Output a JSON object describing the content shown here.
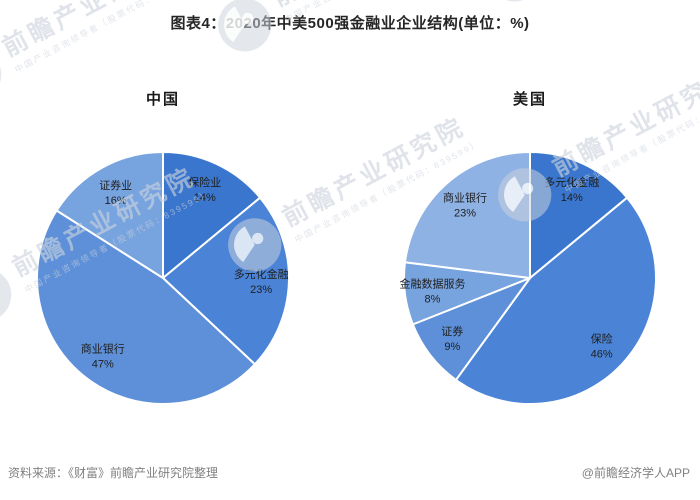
{
  "title": "图表4：2020年中美500强金融业企业结构(单位：%)",
  "footer": {
    "source": "资料来源：《财富》前瞻产业研究院整理",
    "credit": "@前瞻经济学人APP"
  },
  "watermark": {
    "brand": "前瞻产业研究院",
    "tagline": "中国产业咨询领导者（股票代码：839599）"
  },
  "colors": {
    "palette": [
      "#3A76CD",
      "#4B84D6",
      "#5D90D8",
      "#77A3DF",
      "#8FB2E5"
    ],
    "slice_stroke": "#FFFFFF",
    "label_text": "#1F1F1F",
    "title_text": "#262626",
    "footer_text": "#808080"
  },
  "chart_data": [
    {
      "type": "pie",
      "title": "中国",
      "start_angle_deg": 0,
      "direction": "clockwise",
      "labels": [
        "保险业",
        "多元化金融",
        "商业银行",
        "证券业"
      ],
      "values": [
        14,
        23,
        47,
        16
      ],
      "unit": "%",
      "legend": "none",
      "label_position": "inside"
    },
    {
      "type": "pie",
      "title": "美国",
      "start_angle_deg": 0,
      "direction": "clockwise",
      "labels": [
        "多元化金融",
        "保险",
        "证券",
        "金融数据服务",
        "商业银行"
      ],
      "values": [
        14,
        46,
        9,
        8,
        23
      ],
      "unit": "%",
      "legend": "none",
      "label_position": "inside"
    }
  ]
}
